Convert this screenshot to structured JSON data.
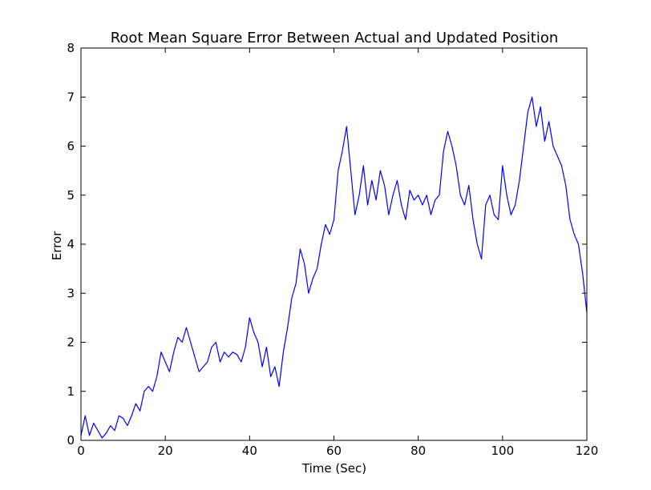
{
  "chart_data": {
    "type": "line",
    "title": "Root Mean Square Error Between Actual and Updated Position",
    "xlabel": "Time (Sec)",
    "ylabel": "Error",
    "xlim": [
      0,
      120
    ],
    "ylim": [
      0,
      8
    ],
    "xticks": [
      0,
      20,
      40,
      60,
      80,
      100,
      120
    ],
    "yticks": [
      0,
      1,
      2,
      3,
      4,
      5,
      6,
      7,
      8
    ],
    "grid": false,
    "series": [
      {
        "color": "#0000ff",
        "x": [
          0,
          1,
          2,
          3,
          4,
          5,
          6,
          7,
          8,
          9,
          10,
          11,
          12,
          13,
          14,
          15,
          16,
          17,
          18,
          19,
          20,
          21,
          22,
          23,
          24,
          25,
          26,
          27,
          28,
          29,
          30,
          31,
          32,
          33,
          34,
          35,
          36,
          37,
          38,
          39,
          40,
          41,
          42,
          43,
          44,
          45,
          46,
          47,
          48,
          49,
          50,
          51,
          52,
          53,
          54,
          55,
          56,
          57,
          58,
          59,
          60,
          61,
          62,
          63,
          64,
          65,
          66,
          67,
          68,
          69,
          70,
          71,
          72,
          73,
          74,
          75,
          76,
          77,
          78,
          79,
          80,
          81,
          82,
          83,
          84,
          85,
          86,
          87,
          88,
          89,
          90,
          91,
          92,
          93,
          94,
          95,
          96,
          97,
          98,
          99,
          100,
          101,
          102,
          103,
          104,
          105,
          106,
          107,
          108,
          109,
          110,
          111,
          112,
          113,
          114,
          115,
          116,
          117,
          118,
          119,
          120
        ],
        "y": [
          0.1,
          0.5,
          0.1,
          0.35,
          0.2,
          0.05,
          0.15,
          0.3,
          0.2,
          0.5,
          0.45,
          0.3,
          0.5,
          0.75,
          0.6,
          1.0,
          1.1,
          1.0,
          1.3,
          1.8,
          1.6,
          1.4,
          1.8,
          2.1,
          2.0,
          2.3,
          2.0,
          1.7,
          1.4,
          1.5,
          1.6,
          1.9,
          2.0,
          1.6,
          1.8,
          1.7,
          1.8,
          1.75,
          1.6,
          1.9,
          2.5,
          2.2,
          2.0,
          1.5,
          1.9,
          1.3,
          1.5,
          1.1,
          1.8,
          2.3,
          2.9,
          3.2,
          3.9,
          3.6,
          3.0,
          3.3,
          3.5,
          4.0,
          4.4,
          4.2,
          4.5,
          5.5,
          5.9,
          6.4,
          5.5,
          4.6,
          5.0,
          5.6,
          4.8,
          5.3,
          4.9,
          5.5,
          5.2,
          4.6,
          5.0,
          5.3,
          4.8,
          4.5,
          5.1,
          4.9,
          5.0,
          4.8,
          5.0,
          4.6,
          4.9,
          5.0,
          5.9,
          6.3,
          6.0,
          5.6,
          5.0,
          4.8,
          5.2,
          4.5,
          4.0,
          3.7,
          4.8,
          5.0,
          4.6,
          4.5,
          5.6,
          5.0,
          4.6,
          4.8,
          5.3,
          6.0,
          6.7,
          7.0,
          6.4,
          6.8,
          6.1,
          6.5,
          6.0,
          5.8,
          5.6,
          5.2,
          4.5,
          4.2,
          4.0,
          3.4,
          2.6
        ]
      }
    ]
  }
}
